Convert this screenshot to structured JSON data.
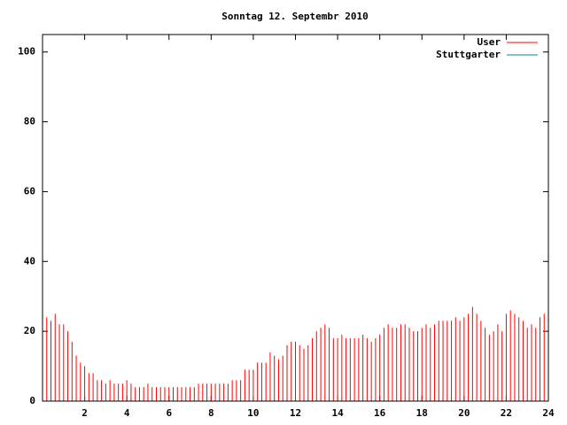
{
  "chart_data": {
    "type": "impulse",
    "title": "Sonntag 12. Septembr 2010",
    "x": [
      0,
      0.2,
      0.4,
      0.6,
      0.8,
      1,
      1.2,
      1.4,
      1.6,
      1.8,
      2,
      2.2,
      2.4,
      2.6,
      2.8,
      3,
      3.2,
      3.4,
      3.6,
      3.8,
      4,
      4.2,
      4.4,
      4.6,
      4.8,
      5,
      5.2,
      5.4,
      5.6,
      5.8,
      6,
      6.2,
      6.4,
      6.6,
      6.8,
      7,
      7.2,
      7.4,
      7.6,
      7.8,
      8,
      8.2,
      8.4,
      8.6,
      8.8,
      9,
      9.2,
      9.4,
      9.6,
      9.8,
      10,
      10.2,
      10.4,
      10.6,
      10.8,
      11,
      11.2,
      11.4,
      11.6,
      11.8,
      12,
      12.2,
      12.4,
      12.6,
      12.8,
      13,
      13.2,
      13.4,
      13.6,
      13.8,
      14,
      14.2,
      14.4,
      14.6,
      14.8,
      15,
      15.2,
      15.4,
      15.6,
      15.8,
      16,
      16.2,
      16.4,
      16.6,
      16.8,
      17,
      17.2,
      17.4,
      17.6,
      17.8,
      18,
      18.2,
      18.4,
      18.6,
      18.8,
      19,
      19.2,
      19.4,
      19.6,
      19.8,
      20,
      20.2,
      20.4,
      20.6,
      20.8,
      21,
      21.2,
      21.4,
      21.6,
      21.8,
      22,
      22.2,
      22.4,
      22.6,
      22.8,
      23,
      23.2,
      23.4,
      23.6,
      23.8,
      24
    ],
    "series": [
      {
        "name": "User",
        "color": "#ff0000",
        "values": [
          25,
          24,
          23,
          25,
          22,
          22,
          20,
          17,
          13,
          11,
          10,
          8,
          8,
          6,
          6,
          5,
          6,
          5,
          5,
          5,
          6,
          5,
          4,
          4,
          4,
          5,
          4,
          4,
          4,
          4,
          4,
          4,
          4,
          4,
          4,
          4,
          4,
          5,
          5,
          5,
          5,
          5,
          5,
          5,
          5,
          6,
          6,
          6,
          9,
          9,
          9,
          11,
          11,
          11,
          14,
          13,
          12,
          13,
          16,
          17,
          17,
          16,
          15,
          16,
          18,
          20,
          21,
          22,
          21,
          18,
          18,
          19,
          18,
          18,
          18,
          18,
          19,
          18,
          17,
          18,
          19,
          21,
          22,
          21,
          21,
          22,
          22,
          21,
          20,
          20,
          21,
          22,
          21,
          22,
          23,
          23,
          23,
          23,
          24,
          23,
          24,
          25,
          27,
          25,
          23,
          21,
          19,
          20,
          22,
          20,
          25,
          26,
          25,
          24,
          23,
          21,
          22,
          21,
          24,
          25,
          19
        ]
      },
      {
        "name": "Stuttgarter",
        "color": "#008b8b"
      }
    ],
    "xlim": [
      0,
      24
    ],
    "xticks": [
      2,
      4,
      6,
      8,
      10,
      12,
      14,
      16,
      18,
      20,
      22,
      24
    ],
    "ylim": [
      0,
      105
    ],
    "yticks": [
      0,
      20,
      40,
      60,
      80,
      100
    ]
  }
}
